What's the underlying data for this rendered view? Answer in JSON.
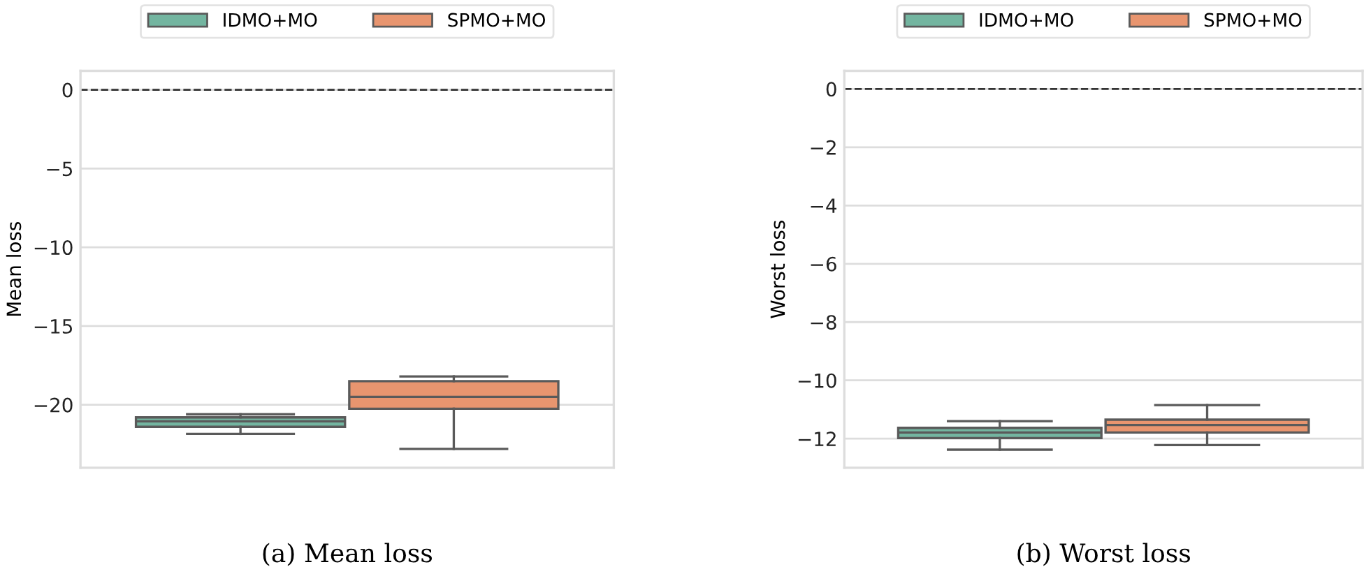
{
  "chart_data": [
    {
      "type": "box",
      "categories": [
        null
      ],
      "ylabel": "Mean loss",
      "ylim": [
        -24.0,
        1.2
      ],
      "yticks": [
        {
          "value": 0,
          "label": "0"
        },
        {
          "value": -5,
          "label": "−5"
        },
        {
          "value": -10,
          "label": "−10"
        },
        {
          "value": -15,
          "label": "−15"
        },
        {
          "value": -20,
          "label": "−20"
        }
      ],
      "grid": "y",
      "legend": "top",
      "tick_labels": "y",
      "ref_lines": [
        {
          "axis": "y",
          "value": 0,
          "color": "#333333",
          "line_style": "dashed"
        }
      ],
      "annotations": [
        "(a) Mean loss"
      ],
      "series": [
        {
          "name": "IDMO+MO",
          "color": "#73b5a0",
          "boxes": [
            {
              "low": -21.85,
              "q1": -21.4,
              "median": -21.05,
              "q3": -20.8,
              "high": -20.6
            }
          ]
        },
        {
          "name": "SPMO+MO",
          "color": "#e8956f",
          "boxes": [
            {
              "low": -22.8,
              "q1": -20.25,
              "median": -19.5,
              "q3": -18.5,
              "high": -18.2
            }
          ]
        }
      ]
    },
    {
      "type": "box",
      "categories": [
        null
      ],
      "ylabel": "Worst loss",
      "ylim": [
        -13.0,
        0.62
      ],
      "yticks": [
        {
          "value": 0,
          "label": "0"
        },
        {
          "value": -2,
          "label": "−2"
        },
        {
          "value": -4,
          "label": "−4"
        },
        {
          "value": -6,
          "label": "−6"
        },
        {
          "value": -8,
          "label": "−8"
        },
        {
          "value": -10,
          "label": "−10"
        },
        {
          "value": -12,
          "label": "−12"
        }
      ],
      "grid": "y",
      "legend": "top",
      "tick_labels": "y",
      "ref_lines": [
        {
          "axis": "y",
          "value": 0,
          "color": "#333333",
          "line_style": "dashed"
        }
      ],
      "annotations": [
        "(b) Worst loss"
      ],
      "series": [
        {
          "name": "IDMO+MO",
          "color": "#73b5a0",
          "boxes": [
            {
              "low": -12.38,
              "q1": -11.98,
              "median": -11.79,
              "q3": -11.63,
              "high": -11.4
            }
          ]
        },
        {
          "name": "SPMO+MO",
          "color": "#e8956f",
          "boxes": [
            {
              "low": -12.22,
              "q1": -11.79,
              "median": -11.53,
              "q3": -11.35,
              "high": -10.85
            }
          ]
        }
      ]
    }
  ]
}
